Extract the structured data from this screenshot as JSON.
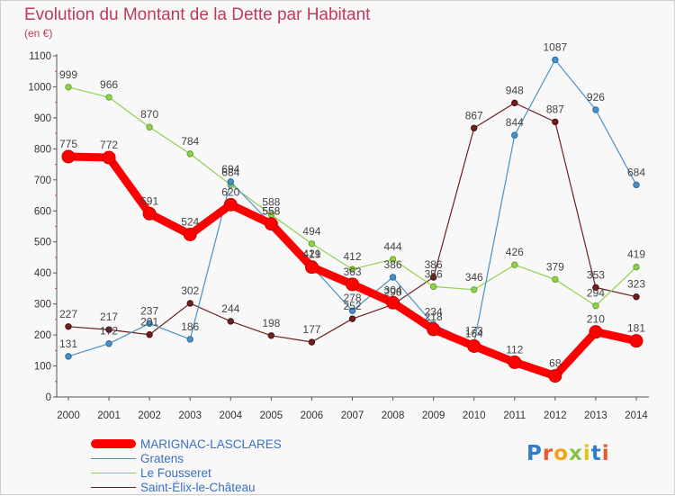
{
  "title": "Evolution du Montant de la Dette par Habitant",
  "unit_label": "(en €)",
  "logo_text": "Proxiti",
  "chart_data": {
    "type": "line",
    "title": "Evolution du Montant de la Dette par Habitant",
    "ylabel": "(en €)",
    "xlabel": "",
    "x": [
      "2000",
      "2001",
      "2002",
      "2003",
      "2004",
      "2005",
      "2006",
      "2007",
      "2008",
      "2009",
      "2010",
      "2011",
      "2012",
      "2013",
      "2014"
    ],
    "ylim": [
      0,
      1100
    ],
    "yticks": [
      0,
      100,
      200,
      300,
      400,
      500,
      600,
      700,
      800,
      900,
      1000,
      1100
    ],
    "grid": false,
    "legend_position": "bottom-left",
    "series": [
      {
        "name": "MARIGNAC-LASCLARES",
        "color": "#ff0000",
        "values": [
          775,
          772,
          591,
          524,
          620,
          558,
          419,
          363,
          304,
          218,
          164,
          112,
          68,
          210,
          181
        ]
      },
      {
        "name": "Gratens",
        "color": "#4a90c8",
        "values": [
          131,
          172,
          237,
          186,
          694,
          558,
          421,
          278,
          386,
          234,
          173,
          844,
          1087,
          926,
          684
        ]
      },
      {
        "name": "Le Fousseret",
        "color": "#8fd14f",
        "values": [
          999,
          966,
          870,
          784,
          684,
          588,
          494,
          412,
          444,
          356,
          346,
          426,
          379,
          294,
          419
        ]
      },
      {
        "name": "Saint-Élix-le-Château",
        "color": "#6e1f1f",
        "values": [
          227,
          217,
          201,
          302,
          244,
          198,
          177,
          252,
          298,
          386,
          867,
          948,
          887,
          353,
          323
        ]
      }
    ]
  }
}
